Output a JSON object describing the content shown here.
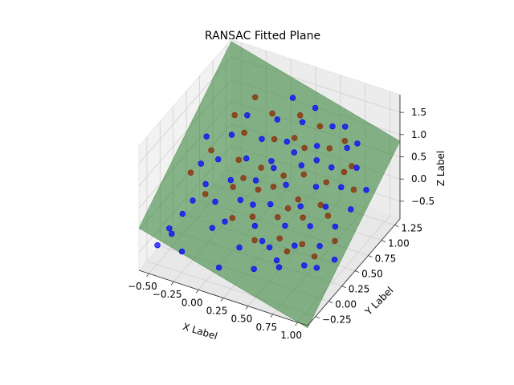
{
  "chart_data": {
    "type": "scatter",
    "title": "RANSAC Fitted Plane",
    "xlabel": "X Label",
    "ylabel": "Y Label",
    "zlabel": "Z Label",
    "xlim": [
      -0.6,
      1.1
    ],
    "ylim": [
      -0.4,
      1.35
    ],
    "zlim": [
      -0.9,
      1.9
    ],
    "xticks": [
      -0.5,
      -0.25,
      0.0,
      0.25,
      0.5,
      0.75,
      1.0
    ],
    "yticks": [
      -0.25,
      0.0,
      0.25,
      0.5,
      0.75,
      1.0,
      1.25
    ],
    "zticks": [
      -0.5,
      0.0,
      0.5,
      1.0,
      1.5
    ],
    "xtick_labels": [
      "−0.50",
      "−0.25",
      "0.00",
      "0.25",
      "0.50",
      "0.75",
      "1.00"
    ],
    "ytick_labels": [
      "−0.25",
      "0.00",
      "0.25",
      "0.50",
      "0.75",
      "1.00",
      "1.25"
    ],
    "ztick_labels": [
      "−0.5",
      "0.0",
      "0.5",
      "1.0",
      "1.5"
    ],
    "grid": true,
    "plane": {
      "color": "#2e7d32",
      "corners": [
        {
          "x": -0.6,
          "y": -0.4,
          "z": 0.05
        },
        {
          "x": 1.1,
          "y": -0.4,
          "z": -0.95
        },
        {
          "x": 1.1,
          "y": 1.35,
          "z": 0.85
        },
        {
          "x": -0.6,
          "y": 1.35,
          "z": 1.85
        }
      ]
    },
    "series": [
      {
        "color": "#0000ff",
        "points": [
          {
            "x": -0.52,
            "y": -0.2,
            "z": -0.55
          },
          {
            "x": -0.48,
            "y": -0.05,
            "z": -0.35
          },
          {
            "x": -0.44,
            "y": -0.08,
            "z": -0.4
          },
          {
            "x": -0.4,
            "y": 0.05,
            "z": -0.1
          },
          {
            "x": -0.35,
            "y": 0.15,
            "z": 0.1
          },
          {
            "x": -0.3,
            "y": 0.3,
            "z": 0.3
          },
          {
            "x": -0.28,
            "y": 0.5,
            "z": 0.6
          },
          {
            "x": -0.25,
            "y": 0.7,
            "z": 0.9
          },
          {
            "x": -0.2,
            "y": 0.9,
            "z": 1.1
          },
          {
            "x": -0.15,
            "y": 0.2,
            "z": 0.15
          },
          {
            "x": -0.1,
            "y": 0.4,
            "z": 0.4
          },
          {
            "x": -0.05,
            "y": 0.6,
            "z": 0.65
          },
          {
            "x": 0.0,
            "y": 0.8,
            "z": 0.85
          },
          {
            "x": 0.05,
            "y": 1.0,
            "z": 1.05
          },
          {
            "x": 0.1,
            "y": 1.2,
            "z": 1.3
          },
          {
            "x": 0.0,
            "y": 0.1,
            "z": -0.05
          },
          {
            "x": 0.05,
            "y": 0.3,
            "z": 0.2
          },
          {
            "x": 0.1,
            "y": 0.5,
            "z": 0.4
          },
          {
            "x": 0.15,
            "y": 0.7,
            "z": 0.6
          },
          {
            "x": 0.2,
            "y": 0.9,
            "z": 0.8
          },
          {
            "x": 0.25,
            "y": 1.1,
            "z": 1.0
          },
          {
            "x": 0.3,
            "y": 1.25,
            "z": 1.15
          },
          {
            "x": 0.2,
            "y": 0.0,
            "z": -0.35
          },
          {
            "x": 0.25,
            "y": 0.2,
            "z": -0.1
          },
          {
            "x": 0.3,
            "y": 0.4,
            "z": 0.15
          },
          {
            "x": 0.35,
            "y": 0.6,
            "z": 0.35
          },
          {
            "x": 0.4,
            "y": 0.8,
            "z": 0.55
          },
          {
            "x": 0.45,
            "y": 1.0,
            "z": 0.75
          },
          {
            "x": 0.5,
            "y": 1.2,
            "z": 0.95
          },
          {
            "x": 0.4,
            "y": -0.1,
            "z": -0.55
          },
          {
            "x": 0.45,
            "y": 0.1,
            "z": -0.3
          },
          {
            "x": 0.5,
            "y": 0.3,
            "z": -0.05
          },
          {
            "x": 0.55,
            "y": 0.5,
            "z": 0.15
          },
          {
            "x": 0.6,
            "y": 0.7,
            "z": 0.35
          },
          {
            "x": 0.65,
            "y": 0.9,
            "z": 0.55
          },
          {
            "x": 0.7,
            "y": 1.1,
            "z": 0.75
          },
          {
            "x": 0.6,
            "y": 0.0,
            "z": -0.5
          },
          {
            "x": 0.65,
            "y": 0.2,
            "z": -0.25
          },
          {
            "x": 0.7,
            "y": 0.4,
            "z": -0.05
          },
          {
            "x": 0.75,
            "y": 0.6,
            "z": 0.15
          },
          {
            "x": 0.8,
            "y": 0.8,
            "z": 0.35
          },
          {
            "x": 0.85,
            "y": 1.0,
            "z": 0.55
          },
          {
            "x": 0.8,
            "y": 0.1,
            "z": -0.45
          },
          {
            "x": 0.85,
            "y": 0.3,
            "z": -0.25
          },
          {
            "x": 0.9,
            "y": 0.5,
            "z": -0.05
          },
          {
            "x": 0.95,
            "y": 0.7,
            "z": 0.1
          },
          {
            "x": 1.0,
            "y": 0.9,
            "z": 0.3
          },
          {
            "x": 1.0,
            "y": 0.3,
            "z": -0.45
          },
          {
            "x": -0.3,
            "y": -0.15,
            "z": -0.6
          },
          {
            "x": 0.1,
            "y": -0.2,
            "z": -0.6
          },
          {
            "x": -0.1,
            "y": 0.05,
            "z": -0.2
          },
          {
            "x": 0.15,
            "y": 0.35,
            "z": 0.1
          },
          {
            "x": 0.35,
            "y": 0.15,
            "z": -0.3
          },
          {
            "x": 0.55,
            "y": 0.05,
            "z": -0.45
          },
          {
            "x": 0.3,
            "y": 0.85,
            "z": 0.7
          },
          {
            "x": 0.5,
            "y": 0.9,
            "z": 0.6
          },
          {
            "x": 0.2,
            "y": 0.65,
            "z": 0.55
          },
          {
            "x": 0.6,
            "y": 1.25,
            "z": 0.95
          },
          {
            "x": 0.75,
            "y": 1.2,
            "z": 0.75
          },
          {
            "x": -0.4,
            "y": 0.4,
            "z": 0.55
          },
          {
            "x": -0.45,
            "y": 0.6,
            "z": 0.85
          },
          {
            "x": 0.9,
            "y": 0.15,
            "z": -0.5
          }
        ]
      },
      {
        "color": "#8b2500",
        "points": [
          {
            "x": -0.45,
            "y": 0.3,
            "z": 0.45
          },
          {
            "x": -0.35,
            "y": 0.5,
            "z": 0.75
          },
          {
            "x": -0.25,
            "y": 0.2,
            "z": 0.25
          },
          {
            "x": -0.15,
            "y": 0.75,
            "z": 0.95
          },
          {
            "x": -0.05,
            "y": 0.35,
            "z": 0.35
          },
          {
            "x": 0.0,
            "y": 1.0,
            "z": 1.15
          },
          {
            "x": 0.05,
            "y": 0.15,
            "z": 0.0
          },
          {
            "x": 0.1,
            "y": 0.85,
            "z": 0.85
          },
          {
            "x": 0.15,
            "y": 0.45,
            "z": 0.3
          },
          {
            "x": 0.2,
            "y": 1.15,
            "z": 1.05
          },
          {
            "x": 0.25,
            "y": 0.55,
            "z": 0.3
          },
          {
            "x": 0.3,
            "y": 0.1,
            "z": -0.25
          },
          {
            "x": 0.35,
            "y": 0.95,
            "z": 0.7
          },
          {
            "x": 0.4,
            "y": 0.35,
            "z": 0.0
          },
          {
            "x": 0.45,
            "y": 0.75,
            "z": 0.45
          },
          {
            "x": 0.5,
            "y": 0.2,
            "z": -0.2
          },
          {
            "x": 0.55,
            "y": 1.05,
            "z": 0.7
          },
          {
            "x": 0.6,
            "y": 0.45,
            "z": 0.0
          },
          {
            "x": 0.65,
            "y": 0.8,
            "z": 0.35
          },
          {
            "x": 0.7,
            "y": 0.25,
            "z": -0.25
          },
          {
            "x": 0.75,
            "y": 0.95,
            "z": 0.45
          },
          {
            "x": 0.8,
            "y": 0.55,
            "z": 0.05
          },
          {
            "x": 0.85,
            "y": 0.2,
            "z": -0.35
          },
          {
            "x": 0.9,
            "y": 0.85,
            "z": 0.3
          },
          {
            "x": 0.95,
            "y": 0.4,
            "z": -0.2
          },
          {
            "x": -0.2,
            "y": 1.05,
            "z": 1.3
          },
          {
            "x": 0.1,
            "y": 0.6,
            "z": 0.55
          },
          {
            "x": 0.3,
            "y": 0.65,
            "z": 0.45
          },
          {
            "x": 0.5,
            "y": 0.55,
            "z": 0.2
          },
          {
            "x": 0.7,
            "y": 0.6,
            "z": 0.15
          },
          {
            "x": 0.2,
            "y": 0.25,
            "z": 0.0
          },
          {
            "x": 0.4,
            "y": 1.15,
            "z": 0.95
          },
          {
            "x": -0.1,
            "y": 0.55,
            "z": 0.65
          },
          {
            "x": 0.6,
            "y": 0.15,
            "z": -0.35
          },
          {
            "x": 0.8,
            "y": 1.0,
            "z": 0.55
          },
          {
            "x": 0.0,
            "y": 0.45,
            "z": 0.45
          },
          {
            "x": 0.45,
            "y": 0.45,
            "z": 0.1
          },
          {
            "x": 0.65,
            "y": 1.15,
            "z": 0.8
          },
          {
            "x": -0.3,
            "y": 0.85,
            "z": 1.1
          },
          {
            "x": 0.25,
            "y": 0.95,
            "z": 0.85
          }
        ]
      }
    ]
  }
}
